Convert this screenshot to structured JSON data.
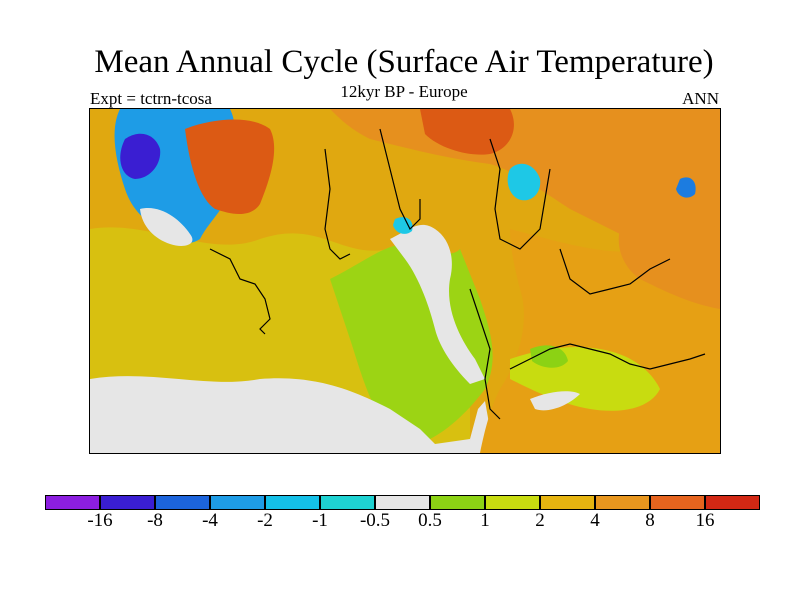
{
  "figure": {
    "title": "Mean Annual Cycle (Surface Air Temperature)",
    "subtitle": "12kyr BP - Europe",
    "left_label": "Expt = tctrn-tcosa",
    "right_label": "ANN"
  },
  "colorbar": {
    "colors": [
      "#8c1ee0",
      "#3a1ed2",
      "#1c64dc",
      "#1e9ce6",
      "#14c0e8",
      "#1ed2d2",
      "#e6e6e6",
      "#8cd214",
      "#c8dc10",
      "#e6b410",
      "#e8961e",
      "#e6641e",
      "#d22814"
    ],
    "labels": [
      "-16",
      "-8",
      "-4",
      "-2",
      "-1",
      "-0.5",
      "0.5",
      "1",
      "2",
      "4",
      "8",
      "16"
    ]
  },
  "map": {
    "region": "Europe",
    "colors": {
      "ocean_warm": "#e0a810",
      "ocean_mild": "#c8dc10",
      "near_zero": "#e6e6e6",
      "green": "#8cd214",
      "land_warm": "#e6901e",
      "hot": "#dc5a14",
      "cold_blue": "#1c7ce0",
      "deep_cold": "#3a1ed2",
      "cyan": "#1ec8e6"
    }
  }
}
